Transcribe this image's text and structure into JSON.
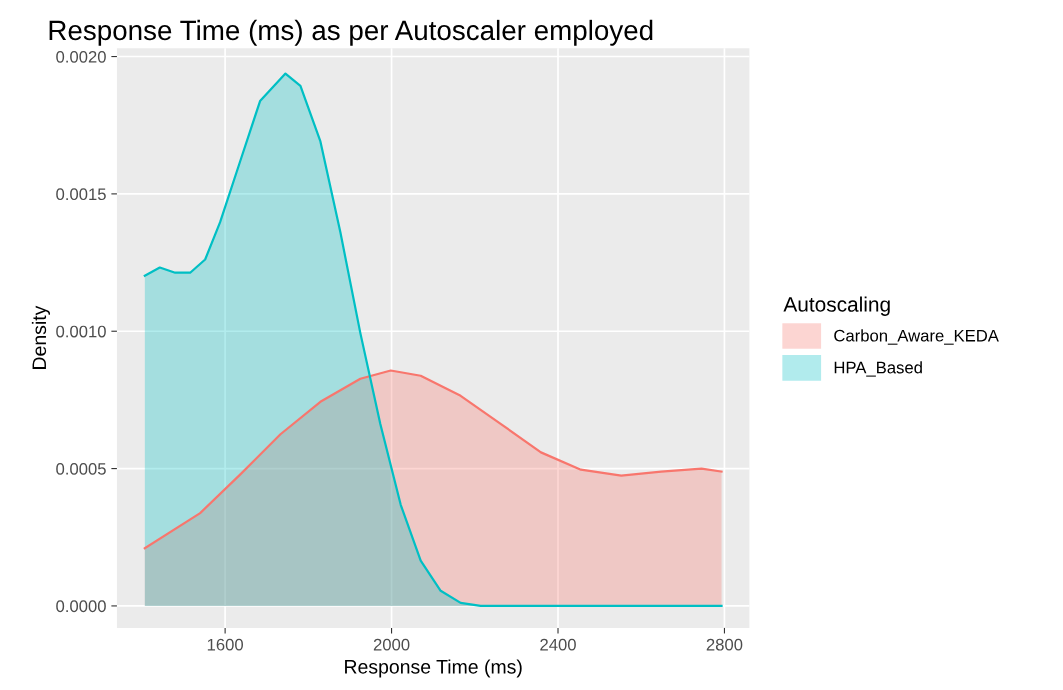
{
  "chart_data": {
    "type": "area",
    "title": "Response Time (ms) as per Autoscaler employed",
    "xlabel": "Response Time (ms)",
    "ylabel": "Density",
    "legend_title": "Autoscaling",
    "legend": "right",
    "grid": true,
    "xlim": [
      1340,
      2860
    ],
    "ylim": [
      -8e-05,
      0.00203
    ],
    "xticks": [
      1600,
      2000,
      2400,
      2800
    ],
    "yticks": [
      {
        "value": 0,
        "label": "0.0000"
      },
      {
        "value": 0.0005,
        "label": "0.0005"
      },
      {
        "value": 0.001,
        "label": "0.0010"
      },
      {
        "value": 0.0015,
        "label": "0.0015"
      },
      {
        "value": 0.002,
        "label": "0.0020"
      }
    ],
    "series": [
      {
        "name": "Carbon_Aware_KEDA",
        "color": "#f8766d",
        "x": [
          1407,
          1540,
          1636,
          1733,
          1829,
          1925,
          1998,
          2070,
          2166,
          2263,
          2359,
          2455,
          2552,
          2648,
          2745,
          2793
        ],
        "values": [
          0.00021,
          0.000338,
          0.000478,
          0.000625,
          0.000743,
          0.000827,
          0.000857,
          0.000838,
          0.000765,
          0.000662,
          0.000559,
          0.000496,
          0.000474,
          0.000489,
          0.0005,
          0.000489
        ]
      },
      {
        "name": "HPA_Based",
        "color": "#00bfc4",
        "x": [
          1407,
          1443,
          1480,
          1516,
          1552,
          1588,
          1636,
          1684,
          1745,
          1781,
          1829,
          1877,
          1925,
          1973,
          2022,
          2070,
          2118,
          2166,
          2214,
          2311,
          2504,
          2793
        ],
        "values": [
          0.001202,
          0.001232,
          0.001213,
          0.001213,
          0.001261,
          0.001397,
          0.001618,
          0.001838,
          0.001938,
          0.001893,
          0.001691,
          0.00136,
          0.000993,
          0.000662,
          0.000368,
          0.000165,
          5.5e-05,
          1.1e-05,
          0,
          0,
          0,
          0
        ]
      }
    ]
  }
}
